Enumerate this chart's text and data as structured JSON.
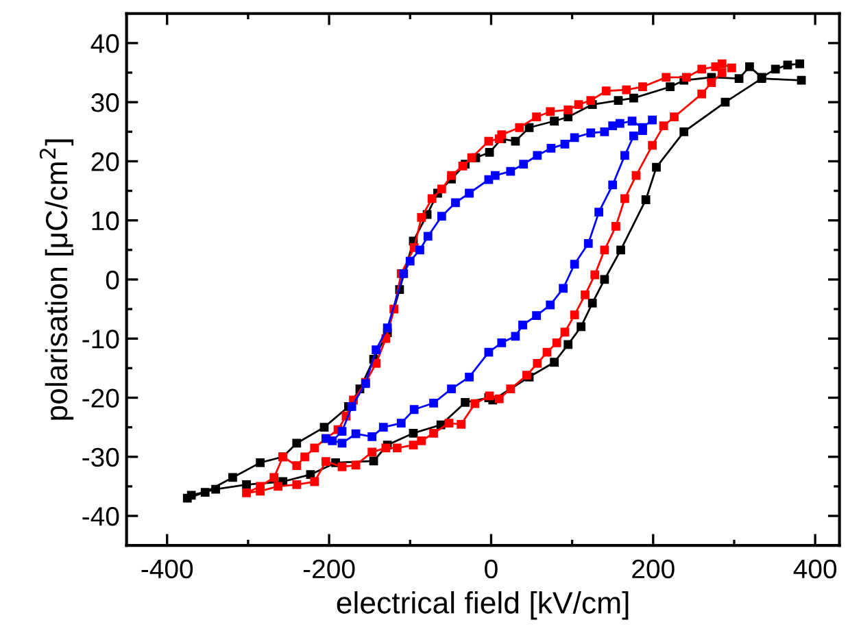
{
  "chart_data": {
    "type": "line",
    "xlabel": "electrical field [kV/cm]",
    "ylabel": "polarisation [μC/cm$^{2}$]",
    "xlim": [
      -450,
      430
    ],
    "ylim": [
      -45,
      45
    ],
    "xticks": [
      -400,
      {
        "value": -300,
        "label": null
      },
      -200,
      {
        "value": -100,
        "label": null
      },
      0,
      {
        "value": 100,
        "label": null
      },
      200,
      {
        "value": 300,
        "label": null
      },
      400
    ],
    "yticks": [
      {
        "value": -45,
        "label": null
      },
      -40,
      {
        "value": -35,
        "label": null
      },
      -30,
      {
        "value": -25,
        "label": null
      },
      -20,
      {
        "value": -15,
        "label": null
      },
      -10,
      {
        "value": -5,
        "label": null
      },
      0,
      {
        "value": 5,
        "label": null
      },
      10,
      {
        "value": 15,
        "label": null
      },
      20,
      {
        "value": 25,
        "label": null
      },
      30,
      {
        "value": 35,
        "label": null
      },
      40
    ],
    "grid": false,
    "legend": false,
    "marker": "square",
    "line_style": "solid",
    "series": [
      {
        "color": "#000000",
        "x": [
          381,
          366,
          351,
          334,
          319,
          306,
          272,
          238,
          221,
          176,
          157,
          125,
          95,
          78,
          47,
          30,
          13,
          -2,
          -19,
          -32,
          -49,
          -66,
          -79,
          -96,
          -113,
          -128,
          -145,
          -162,
          -176,
          -206,
          -240,
          -257,
          -285,
          -319,
          -353,
          -375,
          -370,
          -340,
          -302,
          -257,
          -223,
          -192,
          -145,
          -128,
          -96,
          -62,
          -32,
          -3,
          2,
          47,
          78,
          95,
          111,
          125,
          140,
          160,
          191,
          204,
          238,
          289,
          334,
          383
        ],
        "values": [
          36.5,
          36.3,
          35.6,
          34.2,
          36,
          34,
          34.2,
          33.7,
          32.6,
          30.7,
          30.3,
          29.6,
          27.5,
          26.8,
          25.7,
          23.4,
          23.8,
          21.5,
          20.6,
          19.5,
          17,
          14.6,
          11,
          6.5,
          -1.7,
          -9,
          -13.5,
          -18.5,
          -21.5,
          -25,
          -27.7,
          -30,
          -31,
          -33.5,
          -36,
          -37,
          -36.5,
          -35.5,
          -34.7,
          -34.2,
          -33,
          -31,
          -30.7,
          -28,
          -26,
          -24.6,
          -20.8,
          -20,
          -20.4,
          -16.5,
          -14,
          -11,
          -8,
          -4,
          0,
          5,
          13.5,
          19,
          25,
          30,
          34,
          33.7
        ]
      },
      {
        "color": "#ff0000",
        "x": [
          297,
          285,
          277,
          260,
          241,
          216,
          187,
          167,
          142,
          123,
          108,
          95,
          73,
          56,
          35,
          13,
          10,
          -3,
          -24,
          -35,
          -49,
          -61,
          -73,
          -86,
          -95,
          -111,
          -120,
          -130,
          -142,
          -155,
          -170,
          -179,
          -189,
          -204,
          -218,
          -230,
          -240,
          -257,
          -268,
          -285,
          -302,
          -285,
          -263,
          -240,
          -218,
          -204,
          -184,
          -167,
          -147,
          -130,
          -116,
          -96,
          -86,
          -71,
          -52,
          -37,
          -20,
          -2,
          10,
          24,
          44,
          57,
          69,
          81,
          91,
          103,
          116,
          128,
          140,
          154,
          165,
          179,
          199,
          213,
          226,
          260,
          272,
          285
        ],
        "values": [
          35.8,
          36.5,
          36,
          35.6,
          34.2,
          34.2,
          32.6,
          32.1,
          31.9,
          30.3,
          29.6,
          28.7,
          28.4,
          27.5,
          25.7,
          24.5,
          23.8,
          23.4,
          20.6,
          19.2,
          17.6,
          15.3,
          13.7,
          10.5,
          5.4,
          1,
          -5,
          -10,
          -14.2,
          -17.4,
          -20.4,
          -23.1,
          -25.4,
          -26.9,
          -28.5,
          -30,
          -31.5,
          -30,
          -33.5,
          -35,
          -36.1,
          -35.8,
          -35,
          -34.7,
          -34.2,
          -30.8,
          -31.7,
          -31.4,
          -29.2,
          -28.5,
          -28.5,
          -28,
          -27.3,
          -26,
          -24.3,
          -24.5,
          -21,
          -19.7,
          -20.2,
          -18.5,
          -16.2,
          -14.2,
          -12.3,
          -10.7,
          -8.9,
          -6,
          -2.6,
          0.8,
          5,
          9,
          13.7,
          17.6,
          22.7,
          26,
          27.5,
          31.4,
          33.3,
          35
        ]
      },
      {
        "color": "#0000ff",
        "x": [
          199,
          187,
          174,
          159,
          150,
          140,
          123,
          103,
          91,
          74,
          57,
          40,
          24,
          5,
          -3,
          -27,
          -44,
          -61,
          -78,
          -88,
          -100,
          -108,
          -128,
          -142,
          -155,
          -172,
          -184,
          -196,
          -204,
          -184,
          -167,
          -147,
          -133,
          -111,
          -95,
          -71,
          -49,
          -27,
          -3,
          13,
          30,
          39,
          56,
          73,
          89,
          103,
          120,
          133,
          150,
          165,
          176,
          187
        ],
        "values": [
          27,
          25.7,
          26.8,
          26.4,
          26,
          25,
          24.8,
          24,
          22.9,
          22.2,
          21,
          19.5,
          18.3,
          17.6,
          16.9,
          14.6,
          13,
          10.7,
          7.3,
          5,
          3.1,
          1,
          -8.2,
          -11.9,
          -17.6,
          -21.5,
          -25.7,
          -27.3,
          -26.9,
          -27.7,
          -26.1,
          -26.6,
          -25,
          -24.3,
          -22,
          -20.9,
          -18.5,
          -16.5,
          -12.3,
          -10.7,
          -9.6,
          -7.7,
          -6.1,
          -4.3,
          -1.5,
          2.6,
          6.1,
          11.4,
          16,
          21,
          24.3,
          25.2
        ]
      }
    ]
  }
}
